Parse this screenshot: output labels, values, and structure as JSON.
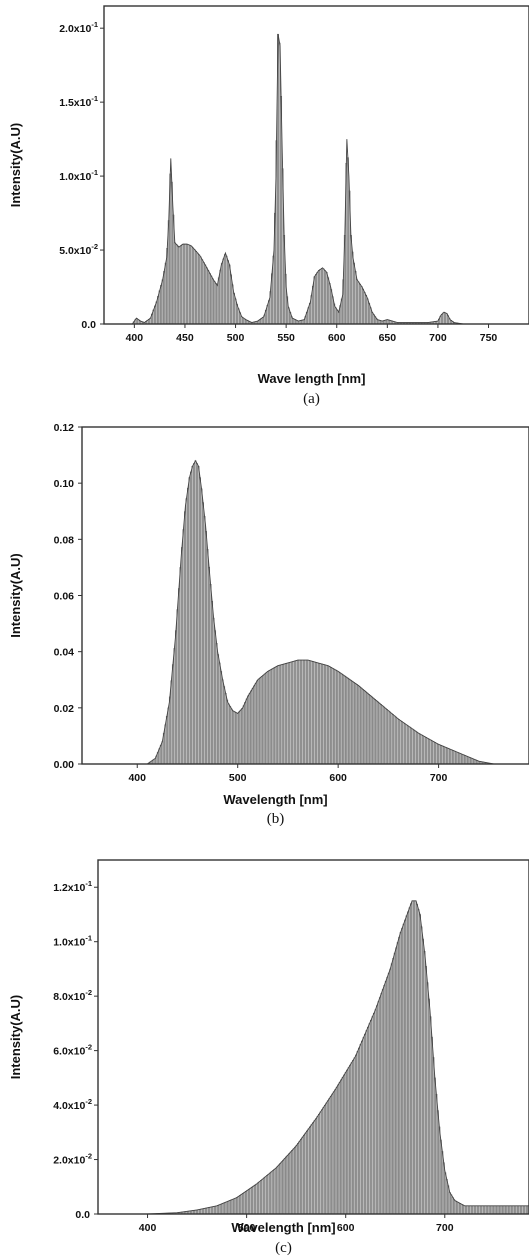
{
  "chart_data": [
    {
      "type": "area",
      "xlabel": "Wave length [nm]",
      "ylabel": "Intensity(A.U)",
      "caption": "(a)",
      "xlim": [
        370,
        790
      ],
      "ylim": [
        0,
        0.215
      ],
      "xticks": [
        400,
        450,
        500,
        550,
        600,
        650,
        700,
        750
      ],
      "xtick_labels": [
        "400",
        "450",
        "500",
        "550",
        "600",
        "650",
        "700",
        "750"
      ],
      "yticks": [
        0,
        0.05,
        0.1,
        0.15,
        0.2
      ],
      "ytick_labels": [
        "0.0",
        "5.0x10-2",
        "1.0x10-1",
        "1.5x10-1",
        "2.0x10-1"
      ],
      "ytick_base": [
        "0.0",
        "5.0x10",
        "1.0x10",
        "1.5x10",
        "2.0x10"
      ],
      "ytick_exp": [
        "",
        "-2",
        "-1",
        "-1",
        "-1"
      ],
      "grid": false,
      "x": [
        380,
        398,
        402,
        406,
        410,
        416,
        422,
        428,
        432,
        434,
        436,
        438,
        440,
        444,
        448,
        452,
        456,
        460,
        465,
        470,
        474,
        478,
        482,
        486,
        490,
        494,
        498,
        502,
        506,
        510,
        516,
        522,
        528,
        534,
        538,
        540,
        542,
        544,
        546,
        548,
        550,
        552,
        556,
        562,
        568,
        574,
        578,
        582,
        586,
        590,
        594,
        598,
        602,
        606,
        608,
        610,
        612,
        614,
        616,
        620,
        625,
        630,
        635,
        640,
        645,
        650,
        655,
        660,
        665,
        675,
        690,
        700,
        703,
        706,
        709,
        712,
        716,
        725,
        750,
        790
      ],
      "y": [
        0,
        0,
        0.004,
        0.002,
        0.001,
        0.004,
        0.015,
        0.03,
        0.045,
        0.07,
        0.112,
        0.08,
        0.055,
        0.052,
        0.054,
        0.054,
        0.053,
        0.05,
        0.046,
        0.04,
        0.035,
        0.03,
        0.026,
        0.04,
        0.048,
        0.04,
        0.022,
        0.012,
        0.005,
        0.003,
        0.001,
        0.002,
        0.005,
        0.018,
        0.05,
        0.1,
        0.196,
        0.188,
        0.12,
        0.06,
        0.025,
        0.012,
        0.004,
        0.002,
        0.003,
        0.015,
        0.032,
        0.036,
        0.038,
        0.035,
        0.025,
        0.012,
        0.008,
        0.02,
        0.06,
        0.125,
        0.1,
        0.06,
        0.045,
        0.03,
        0.025,
        0.018,
        0.008,
        0.003,
        0.002,
        0.003,
        0.002,
        0.001,
        0.001,
        0.001,
        0.001,
        0.002,
        0.006,
        0.008,
        0.007,
        0.003,
        0.001,
        0,
        0,
        0
      ]
    },
    {
      "type": "area",
      "xlabel": "Wavelength [nm]",
      "ylabel": "Intensity(A.U)",
      "caption": "(b)",
      "xlim": [
        345,
        790
      ],
      "ylim": [
        0,
        0.12
      ],
      "xticks": [
        400,
        500,
        600,
        700
      ],
      "xtick_labels": [
        "400",
        "500",
        "600",
        "700"
      ],
      "yticks": [
        0,
        0.02,
        0.04,
        0.06,
        0.08,
        0.1,
        0.12
      ],
      "ytick_labels": [
        "0.00",
        "0.02",
        "0.04",
        "0.06",
        "0.08",
        "0.10",
        "0.12"
      ],
      "ytick_base": [
        "0.00",
        "0.02",
        "0.04",
        "0.06",
        "0.08",
        "0.10",
        "0.12"
      ],
      "ytick_exp": [
        "",
        "",
        "",
        "",
        "",
        "",
        ""
      ],
      "grid": false,
      "x": [
        380,
        410,
        418,
        425,
        432,
        438,
        444,
        448,
        452,
        455,
        458,
        461,
        464,
        468,
        472,
        476,
        480,
        485,
        490,
        495,
        500,
        505,
        510,
        520,
        530,
        540,
        550,
        560,
        570,
        580,
        590,
        600,
        620,
        640,
        660,
        680,
        700,
        720,
        740,
        755,
        790
      ],
      "y": [
        0,
        0,
        0.002,
        0.008,
        0.022,
        0.045,
        0.075,
        0.092,
        0.102,
        0.106,
        0.108,
        0.106,
        0.098,
        0.085,
        0.068,
        0.052,
        0.04,
        0.03,
        0.022,
        0.019,
        0.018,
        0.02,
        0.024,
        0.03,
        0.033,
        0.035,
        0.036,
        0.037,
        0.037,
        0.036,
        0.035,
        0.033,
        0.028,
        0.022,
        0.016,
        0.011,
        0.007,
        0.004,
        0.001,
        0,
        0
      ]
    },
    {
      "type": "area",
      "xlabel": "Wavelength [nm]",
      "ylabel": "Intensity(A.U)",
      "caption": "(c)",
      "xlim": [
        350,
        785
      ],
      "ylim": [
        0,
        0.13
      ],
      "xticks": [
        400,
        500,
        600,
        700
      ],
      "xtick_labels": [
        "400",
        "500",
        "600",
        "700"
      ],
      "yticks": [
        0,
        0.02,
        0.04,
        0.06,
        0.08,
        0.1,
        0.12
      ],
      "ytick_labels": [
        "0.0",
        "2.0x10-2",
        "4.0x10-2",
        "6.0x10-2",
        "8.0x10-2",
        "1.0x10-1",
        "1.2x10-1"
      ],
      "ytick_base": [
        "0.0",
        "2.0x10",
        "4.0x10",
        "6.0x10",
        "8.0x10",
        "1.0x10",
        "1.2x10"
      ],
      "ytick_exp": [
        "",
        "-2",
        "-2",
        "-2",
        "-2",
        "-1",
        "-1"
      ],
      "grid": false,
      "x": [
        360,
        400,
        430,
        450,
        470,
        490,
        510,
        530,
        550,
        570,
        590,
        610,
        630,
        645,
        655,
        662,
        667,
        671,
        675,
        680,
        685,
        690,
        695,
        700,
        705,
        710,
        715,
        720,
        730,
        785
      ],
      "y": [
        0,
        0,
        0.0005,
        0.0015,
        0.003,
        0.006,
        0.011,
        0.017,
        0.025,
        0.035,
        0.046,
        0.058,
        0.075,
        0.09,
        0.103,
        0.11,
        0.115,
        0.115,
        0.11,
        0.095,
        0.075,
        0.05,
        0.03,
        0.016,
        0.008,
        0.005,
        0.004,
        0.003,
        0.003,
        0.003
      ]
    }
  ]
}
